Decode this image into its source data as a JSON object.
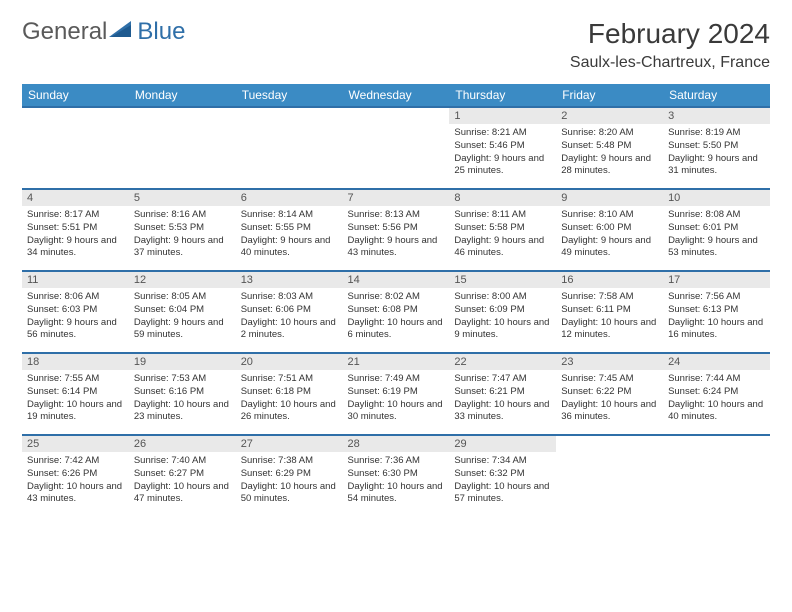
{
  "logo": {
    "text1": "General",
    "text2": "Blue"
  },
  "title": "February 2024",
  "location": "Saulx-les-Chartreux, France",
  "colors": {
    "header_bg": "#3b8bc4",
    "header_text": "#ffffff",
    "row_border": "#2f6fa8",
    "daynum_bg": "#e9e9e9",
    "logo_blue": "#2f6fa8",
    "logo_gray": "#5a5a5a"
  },
  "day_headers": [
    "Sunday",
    "Monday",
    "Tuesday",
    "Wednesday",
    "Thursday",
    "Friday",
    "Saturday"
  ],
  "weeks": [
    [
      null,
      null,
      null,
      null,
      {
        "n": "1",
        "sr": "8:21 AM",
        "ss": "5:46 PM",
        "dl": "9 hours and 25 minutes."
      },
      {
        "n": "2",
        "sr": "8:20 AM",
        "ss": "5:48 PM",
        "dl": "9 hours and 28 minutes."
      },
      {
        "n": "3",
        "sr": "8:19 AM",
        "ss": "5:50 PM",
        "dl": "9 hours and 31 minutes."
      }
    ],
    [
      {
        "n": "4",
        "sr": "8:17 AM",
        "ss": "5:51 PM",
        "dl": "9 hours and 34 minutes."
      },
      {
        "n": "5",
        "sr": "8:16 AM",
        "ss": "5:53 PM",
        "dl": "9 hours and 37 minutes."
      },
      {
        "n": "6",
        "sr": "8:14 AM",
        "ss": "5:55 PM",
        "dl": "9 hours and 40 minutes."
      },
      {
        "n": "7",
        "sr": "8:13 AM",
        "ss": "5:56 PM",
        "dl": "9 hours and 43 minutes."
      },
      {
        "n": "8",
        "sr": "8:11 AM",
        "ss": "5:58 PM",
        "dl": "9 hours and 46 minutes."
      },
      {
        "n": "9",
        "sr": "8:10 AM",
        "ss": "6:00 PM",
        "dl": "9 hours and 49 minutes."
      },
      {
        "n": "10",
        "sr": "8:08 AM",
        "ss": "6:01 PM",
        "dl": "9 hours and 53 minutes."
      }
    ],
    [
      {
        "n": "11",
        "sr": "8:06 AM",
        "ss": "6:03 PM",
        "dl": "9 hours and 56 minutes."
      },
      {
        "n": "12",
        "sr": "8:05 AM",
        "ss": "6:04 PM",
        "dl": "9 hours and 59 minutes."
      },
      {
        "n": "13",
        "sr": "8:03 AM",
        "ss": "6:06 PM",
        "dl": "10 hours and 2 minutes."
      },
      {
        "n": "14",
        "sr": "8:02 AM",
        "ss": "6:08 PM",
        "dl": "10 hours and 6 minutes."
      },
      {
        "n": "15",
        "sr": "8:00 AM",
        "ss": "6:09 PM",
        "dl": "10 hours and 9 minutes."
      },
      {
        "n": "16",
        "sr": "7:58 AM",
        "ss": "6:11 PM",
        "dl": "10 hours and 12 minutes."
      },
      {
        "n": "17",
        "sr": "7:56 AM",
        "ss": "6:13 PM",
        "dl": "10 hours and 16 minutes."
      }
    ],
    [
      {
        "n": "18",
        "sr": "7:55 AM",
        "ss": "6:14 PM",
        "dl": "10 hours and 19 minutes."
      },
      {
        "n": "19",
        "sr": "7:53 AM",
        "ss": "6:16 PM",
        "dl": "10 hours and 23 minutes."
      },
      {
        "n": "20",
        "sr": "7:51 AM",
        "ss": "6:18 PM",
        "dl": "10 hours and 26 minutes."
      },
      {
        "n": "21",
        "sr": "7:49 AM",
        "ss": "6:19 PM",
        "dl": "10 hours and 30 minutes."
      },
      {
        "n": "22",
        "sr": "7:47 AM",
        "ss": "6:21 PM",
        "dl": "10 hours and 33 minutes."
      },
      {
        "n": "23",
        "sr": "7:45 AM",
        "ss": "6:22 PM",
        "dl": "10 hours and 36 minutes."
      },
      {
        "n": "24",
        "sr": "7:44 AM",
        "ss": "6:24 PM",
        "dl": "10 hours and 40 minutes."
      }
    ],
    [
      {
        "n": "25",
        "sr": "7:42 AM",
        "ss": "6:26 PM",
        "dl": "10 hours and 43 minutes."
      },
      {
        "n": "26",
        "sr": "7:40 AM",
        "ss": "6:27 PM",
        "dl": "10 hours and 47 minutes."
      },
      {
        "n": "27",
        "sr": "7:38 AM",
        "ss": "6:29 PM",
        "dl": "10 hours and 50 minutes."
      },
      {
        "n": "28",
        "sr": "7:36 AM",
        "ss": "6:30 PM",
        "dl": "10 hours and 54 minutes."
      },
      {
        "n": "29",
        "sr": "7:34 AM",
        "ss": "6:32 PM",
        "dl": "10 hours and 57 minutes."
      },
      null,
      null
    ]
  ],
  "labels": {
    "sunrise": "Sunrise:",
    "sunset": "Sunset:",
    "daylight": "Daylight:"
  }
}
